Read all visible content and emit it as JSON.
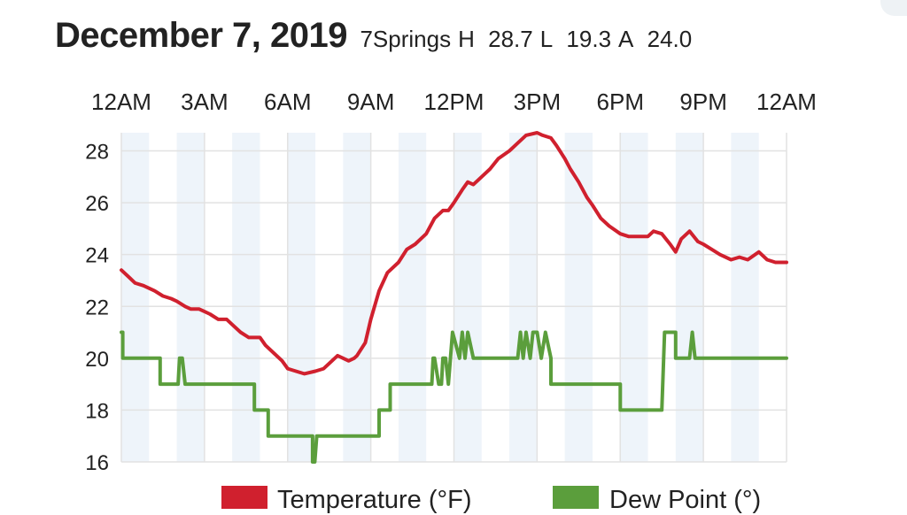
{
  "header": {
    "date": "December 7, 2019",
    "station": "7Springs",
    "high_label": "H",
    "high": "28.7",
    "low_label": "L",
    "low": "19.3",
    "avg_label": "A",
    "avg": "24.0"
  },
  "colors": {
    "temperature": "#d0202e",
    "dew_point": "#5b9e3c",
    "band": "#eef4fa",
    "grid": "#e2e2e2"
  },
  "chart_data": {
    "type": "line",
    "title": "December 7, 2019",
    "x_tick_labels": [
      "12AM",
      "3AM",
      "6AM",
      "9AM",
      "12PM",
      "3PM",
      "6PM",
      "9PM",
      "12AM"
    ],
    "x_unit": "hours",
    "x_range": [
      0,
      24
    ],
    "y_ticks": [
      16,
      18,
      20,
      22,
      24,
      26,
      28
    ],
    "y_range": [
      16,
      28.7
    ],
    "series": [
      {
        "name": "Temperature (°F)",
        "color": "#d0202e",
        "x": [
          0,
          0.3,
          0.5,
          0.8,
          1.2,
          1.5,
          1.8,
          2.0,
          2.3,
          2.5,
          2.8,
          3.0,
          3.2,
          3.5,
          3.8,
          4.0,
          4.3,
          4.6,
          5.0,
          5.2,
          5.5,
          5.8,
          6.0,
          6.3,
          6.6,
          7.0,
          7.3,
          7.6,
          7.8,
          8.0,
          8.2,
          8.4,
          8.5,
          8.8,
          9.0,
          9.3,
          9.6,
          10.0,
          10.3,
          10.6,
          11.0,
          11.3,
          11.6,
          11.8,
          12.0,
          12.3,
          12.5,
          12.7,
          13.0,
          13.3,
          13.6,
          14.0,
          14.3,
          14.6,
          15.0,
          15.2,
          15.5,
          15.7,
          16.0,
          16.2,
          16.5,
          16.8,
          17.0,
          17.3,
          17.6,
          18.0,
          18.3,
          18.6,
          19.0,
          19.2,
          19.5,
          19.8,
          20.0,
          20.2,
          20.5,
          20.8,
          21.0,
          21.3,
          21.6,
          22.0,
          22.3,
          22.6,
          23.0,
          23.3,
          23.6,
          24.0
        ],
        "values": [
          23.4,
          23.1,
          22.9,
          22.8,
          22.6,
          22.4,
          22.3,
          22.2,
          22.0,
          21.9,
          21.9,
          21.8,
          21.7,
          21.5,
          21.5,
          21.3,
          21.0,
          20.8,
          20.8,
          20.5,
          20.2,
          19.9,
          19.6,
          19.5,
          19.4,
          19.5,
          19.6,
          19.9,
          20.1,
          20.0,
          19.9,
          20.0,
          20.1,
          20.6,
          21.5,
          22.6,
          23.3,
          23.7,
          24.2,
          24.4,
          24.8,
          25.4,
          25.7,
          25.7,
          26.0,
          26.5,
          26.8,
          26.7,
          27.0,
          27.3,
          27.7,
          28.0,
          28.3,
          28.6,
          28.7,
          28.6,
          28.5,
          28.2,
          27.7,
          27.3,
          26.8,
          26.2,
          25.9,
          25.4,
          25.1,
          24.8,
          24.7,
          24.7,
          24.7,
          24.9,
          24.8,
          24.4,
          24.1,
          24.6,
          24.9,
          24.5,
          24.4,
          24.2,
          24.0,
          23.8,
          23.9,
          23.8,
          24.1,
          23.8,
          23.7,
          23.7
        ]
      },
      {
        "name": "Dew Point (°)",
        "color": "#5b9e3c",
        "x": [
          0,
          0.05,
          0.05,
          1.4,
          1.4,
          2.05,
          2.1,
          2.2,
          2.3,
          4.8,
          4.8,
          5.3,
          5.3,
          6.9,
          6.9,
          6.98,
          7.05,
          9.3,
          9.3,
          9.7,
          9.7,
          11.2,
          11.25,
          11.3,
          11.45,
          11.55,
          11.6,
          11.7,
          11.8,
          11.95,
          12.2,
          12.3,
          12.4,
          12.5,
          12.7,
          13.0,
          14.3,
          14.4,
          14.5,
          14.6,
          14.75,
          14.85,
          15.0,
          15.15,
          15.3,
          15.5,
          15.5,
          18.0,
          18.0,
          19.5,
          19.6,
          19.7,
          20.0,
          20.0,
          20.5,
          20.6,
          20.7,
          24.0
        ],
        "values": [
          21,
          21,
          20,
          20,
          19,
          19,
          20,
          20,
          19,
          19,
          18,
          18,
          17,
          17,
          16,
          16,
          17,
          17,
          18,
          18,
          19,
          19,
          20,
          20,
          19,
          19,
          20,
          20,
          19,
          21,
          20,
          21,
          20,
          21,
          20,
          20,
          20,
          21,
          20,
          21,
          20,
          21,
          21,
          20,
          21,
          20,
          19,
          19,
          18,
          18,
          21,
          21,
          21,
          20,
          20,
          21,
          20,
          20
        ]
      }
    ],
    "legend": [
      "Temperature (°F)",
      "Dew Point (°)"
    ],
    "legend_position": "bottom",
    "grid": true
  }
}
